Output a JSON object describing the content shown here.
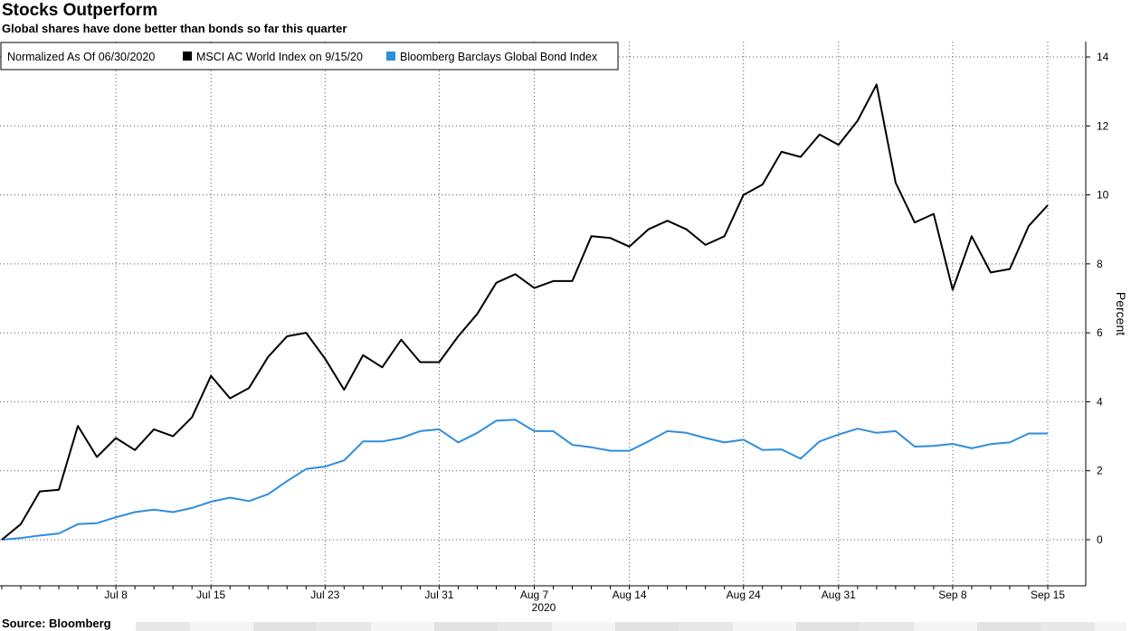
{
  "chart_data": {
    "type": "line",
    "title": "Stocks Outperform",
    "subtitle": "Global shares have done better than bonds so far this quarter",
    "source": "Source: Bloomberg",
    "legend": {
      "placement": "top-left",
      "note": "Normalized As Of 06/30/2020",
      "entries": [
        {
          "label": "MSCI AC World Index on 9/15/20",
          "color": "#000000"
        },
        {
          "label": "Bloomberg Barclays Global Bond Index",
          "color": "#2f8ddd"
        }
      ]
    },
    "ylabel": "Percent",
    "ylim": [
      -1.2,
      14.5
    ],
    "yticks": [
      0,
      2,
      4,
      6,
      8,
      10,
      12,
      14
    ],
    "x_tick_labels": [
      "Jul 8",
      "Jul 15",
      "Jul 23",
      "Jul 31",
      "Aug 7",
      "Aug 14",
      "Aug 24",
      "Aug 31",
      "Sep 8",
      "Sep 15"
    ],
    "x_tick_index": [
      6,
      11,
      17,
      23,
      28,
      33,
      39,
      44,
      50,
      55
    ],
    "x_year_label": "2020",
    "grid": true,
    "x_count": 56,
    "series": [
      {
        "name": "MSCI AC World Index on 9/15/20",
        "color": "#000000",
        "values": [
          0,
          0.45,
          1.4,
          1.45,
          3.3,
          2.4,
          2.95,
          2.6,
          3.2,
          3.0,
          3.55,
          4.75,
          4.1,
          4.4,
          5.3,
          5.9,
          6.0,
          5.25,
          4.35,
          5.35,
          5.0,
          5.8,
          5.15,
          5.15,
          5.9,
          6.55,
          7.45,
          7.7,
          7.3,
          7.5,
          7.5,
          8.8,
          8.75,
          8.5,
          9.0,
          9.25,
          9.0,
          8.55,
          8.8,
          10.0,
          10.3,
          11.25,
          11.1,
          11.75,
          11.45,
          12.15,
          13.2,
          10.35,
          9.2,
          9.45,
          7.25,
          8.8,
          7.75,
          7.85,
          9.1,
          9.7
        ]
      },
      {
        "name": "Bloomberg Barclays Global Bond Index",
        "color": "#2f8ddd",
        "values": [
          0,
          0.05,
          0.12,
          0.18,
          0.45,
          0.48,
          0.65,
          0.8,
          0.87,
          0.8,
          0.92,
          1.1,
          1.22,
          1.12,
          1.32,
          1.7,
          2.05,
          2.12,
          2.3,
          2.85,
          2.85,
          2.95,
          3.15,
          3.2,
          2.82,
          3.1,
          3.45,
          3.48,
          3.15,
          3.15,
          2.75,
          2.68,
          2.58,
          2.58,
          2.85,
          3.15,
          3.1,
          2.95,
          2.82,
          2.9,
          2.6,
          2.62,
          2.35,
          2.85,
          3.05,
          3.22,
          3.1,
          3.15,
          2.7,
          2.72,
          2.78,
          2.65,
          2.77,
          2.82,
          3.08,
          3.08
        ]
      }
    ]
  }
}
